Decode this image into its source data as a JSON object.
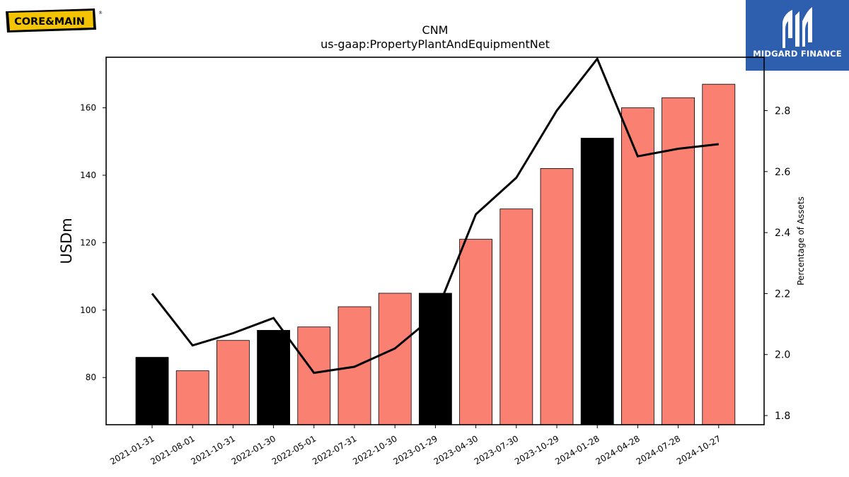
{
  "brand": {
    "left_logo_text": "CORE&MAIN",
    "right_logo_text": "MIDGARD FINANCE",
    "right_logo_color": "#2d5fae",
    "left_logo_accent": "#f5c400"
  },
  "chart_data": {
    "type": "bar",
    "title": "CNM",
    "subtitle": "us-gaap:PropertyPlantAndEquipmentNet",
    "ylabel": "USDm",
    "ylabel_right": "Percentage of Assets",
    "categories": [
      "2021-01-31",
      "2021-08-01",
      "2021-10-31",
      "2022-01-30",
      "2022-05-01",
      "2022-07-31",
      "2022-10-30",
      "2023-01-29",
      "2023-04-30",
      "2023-07-30",
      "2023-10-29",
      "2024-01-28",
      "2024-04-28",
      "2024-07-28",
      "2024-10-27"
    ],
    "values": [
      86,
      82,
      91,
      94,
      95,
      101,
      105,
      105,
      121,
      130,
      142,
      151,
      160,
      163,
      167
    ],
    "bar_colors": [
      "#000000",
      "#fa8072",
      "#fa8072",
      "#000000",
      "#fa8072",
      "#fa8072",
      "#fa8072",
      "#000000",
      "#fa8072",
      "#fa8072",
      "#fa8072",
      "#000000",
      "#fa8072",
      "#fa8072",
      "#fa8072"
    ],
    "line_series": {
      "name": "",
      "values": [
        2.2,
        2.03,
        2.07,
        2.12,
        1.94,
        1.96,
        2.02,
        2.13,
        2.46,
        2.58,
        2.8,
        2.97,
        2.65,
        2.675,
        2.69
      ],
      "color": "#000000"
    },
    "ylim": [
      66,
      175
    ],
    "ylim_right": [
      1.77,
      2.975
    ],
    "yticks": [
      80,
      100,
      120,
      140,
      160
    ],
    "yticks_right": [
      1.8,
      2.0,
      2.2,
      2.4,
      2.6,
      2.8
    ],
    "grid": false
  }
}
